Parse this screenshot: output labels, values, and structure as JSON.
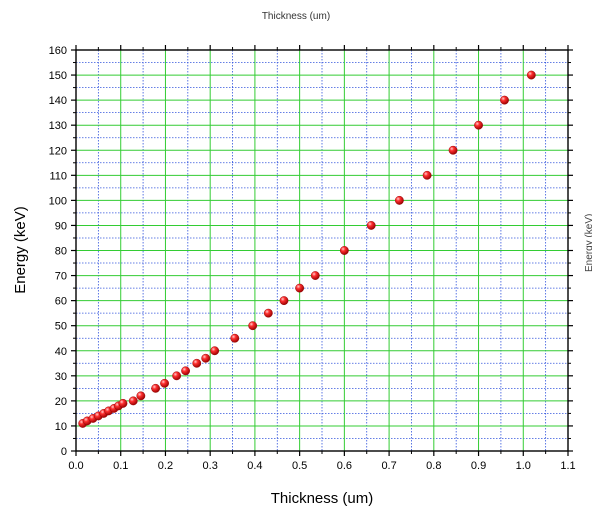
{
  "page": {
    "top_label": "Thickness (um)",
    "right_label": "Energy (keV)"
  },
  "chart_data": {
    "type": "scatter",
    "xlabel": "Thickness (um)",
    "ylabel": "Energy (keV)",
    "xlim": [
      0.0,
      1.1
    ],
    "ylim": [
      0,
      160
    ],
    "xticks": [
      0.0,
      0.1,
      0.2,
      0.3,
      0.4,
      0.5,
      0.6,
      0.7,
      0.8,
      0.9,
      1.0,
      1.1
    ],
    "xtick_labels": [
      "0.0",
      "0.1",
      "0.2",
      "0.3",
      "0.4",
      "0.5",
      "0.6",
      "0.7",
      "0.8",
      "0.9",
      "1.0",
      "1.1"
    ],
    "yticks": [
      0,
      10,
      20,
      30,
      40,
      50,
      60,
      70,
      80,
      90,
      100,
      110,
      120,
      130,
      140,
      150,
      160
    ],
    "ytick_labels": [
      "0",
      "10",
      "20",
      "30",
      "40",
      "50",
      "60",
      "70",
      "80",
      "90",
      "100",
      "110",
      "120",
      "130",
      "140",
      "150",
      "160"
    ],
    "grid": true,
    "colors": {
      "marker": "#e01010",
      "major_grid": "#33cc33",
      "minor_grid": "#3355dd",
      "axis": "#000000"
    },
    "series": [
      {
        "marker": "sphere",
        "x": [
          0.015,
          0.025,
          0.038,
          0.05,
          0.062,
          0.073,
          0.085,
          0.095,
          0.105,
          0.128,
          0.145,
          0.178,
          0.198,
          0.225,
          0.245,
          0.27,
          0.29,
          0.31,
          0.355,
          0.395,
          0.43,
          0.465,
          0.5,
          0.535,
          0.6,
          0.66,
          0.723,
          0.785,
          0.843,
          0.9,
          0.958,
          1.018
        ],
        "y": [
          11,
          12,
          13,
          14,
          15,
          16,
          17,
          18,
          19,
          20,
          22,
          25,
          27,
          30,
          32,
          35,
          37,
          40,
          45,
          50,
          55,
          60,
          65,
          70,
          80,
          90,
          100,
          110,
          120,
          130,
          140,
          150
        ]
      }
    ]
  }
}
